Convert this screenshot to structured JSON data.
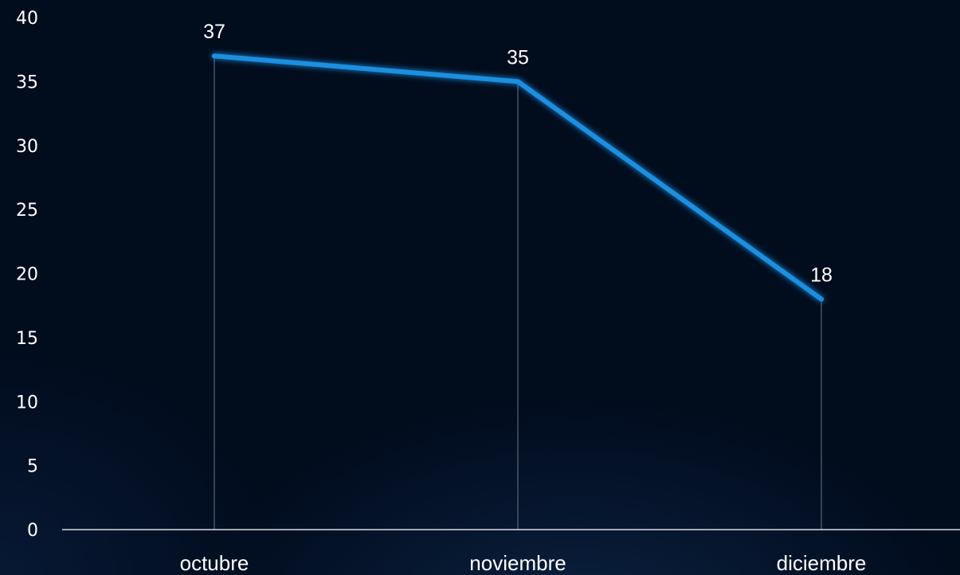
{
  "chart_data": {
    "type": "line",
    "categories": [
      "octubre",
      "noviembre",
      "diciembre"
    ],
    "series": [
      {
        "values": [
          37,
          35,
          18
        ],
        "color": "#1a8fe0"
      }
    ],
    "data_labels": [
      "37",
      "35",
      "18"
    ],
    "y_ticks": [
      "0",
      "5",
      "10",
      "15",
      "20",
      "25",
      "30",
      "35",
      "40"
    ],
    "ylim": [
      0,
      40
    ],
    "grid": false,
    "drop_lines": true,
    "colors": {
      "background": "#010c1d",
      "line": "#1a8fe0",
      "axis": "#d8dde6",
      "drop_line": "#5a6676",
      "text": "#ffffff"
    }
  }
}
